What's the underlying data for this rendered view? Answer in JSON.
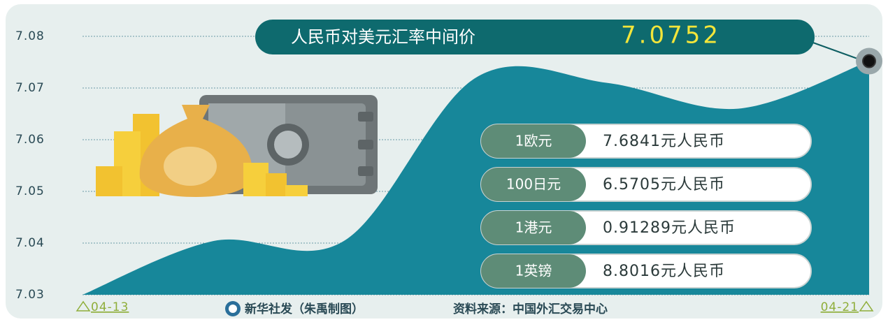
{
  "chart_data": {
    "type": "area",
    "title": "人民币对美元汇率中间价",
    "categories": [
      "04-13",
      null,
      null,
      null,
      null,
      null,
      "04-21"
    ],
    "values": [
      7.03,
      7.0404,
      7.0405,
      7.072,
      7.071,
      7.066,
      7.0752
    ],
    "color": "#17879a",
    "ylim": [
      7.03,
      7.08
    ],
    "yticks": [
      7.03,
      7.04,
      7.05,
      7.06,
      7.07,
      7.08
    ],
    "grid": true,
    "rates": [
      {
        "unit": "1欧元",
        "value": "7.6841元人民币"
      },
      {
        "unit": "100日元",
        "value": "6.5705元人民币"
      },
      {
        "unit": "1港元",
        "value": "0.91289元人民币"
      },
      {
        "unit": "1英镑",
        "value": "8.8016元人民币"
      }
    ],
    "credit": "新华社发（朱禹制图）",
    "source": "资料来源：中国外汇交易中心"
  }
}
